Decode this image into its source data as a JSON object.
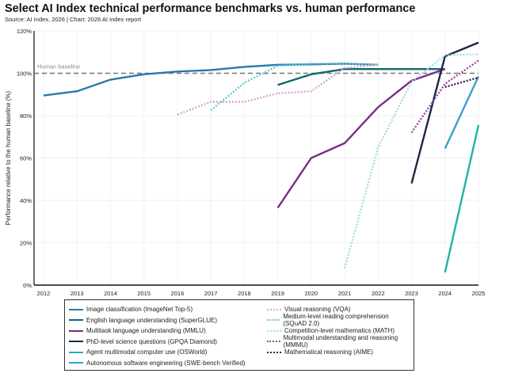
{
  "chart_data": {
    "type": "line",
    "title": "Select AI Index technical performance benchmarks vs. human performance",
    "subtitle": "Source: AI Index, 2026 | Chart: 2026 AI Index report",
    "xlabel": "",
    "ylabel": "Performance relative to the human baseline (%)",
    "xlim": [
      2012,
      2025
    ],
    "ylim": [
      0,
      120
    ],
    "x_ticks": [
      "2012",
      "2013",
      "2014",
      "2015",
      "2016",
      "2017",
      "2018",
      "2019",
      "2020",
      "2021",
      "2022",
      "2023",
      "2024",
      "2025"
    ],
    "y_ticks": [
      "0%",
      "20%",
      "40%",
      "60%",
      "80%",
      "100%",
      "120%"
    ],
    "baseline": {
      "label": "Human baseline",
      "value": 100
    },
    "legend_position": "bottom",
    "series": [
      {
        "name": "Image classification (ImageNet Top-5)",
        "color": "#2a78ad",
        "style": "solid",
        "x": [
          2012,
          2013,
          2014,
          2015,
          2016,
          2017,
          2018,
          2019,
          2020,
          2021,
          2022
        ],
        "y": [
          89.5,
          91.5,
          97,
          99.5,
          100.8,
          101.5,
          103,
          104,
          104.2,
          104.5,
          104
        ]
      },
      {
        "name": "English language understanding (SuperGLUE)",
        "color": "#10686a",
        "style": "solid",
        "x": [
          2019,
          2020,
          2021,
          2022,
          2023,
          2024
        ],
        "y": [
          94.5,
          99.5,
          102,
          102,
          102,
          102
        ]
      },
      {
        "name": "Multitask language understanding (MMLU)",
        "color": "#7a2d82",
        "style": "solid",
        "x": [
          2019,
          2020,
          2021,
          2022,
          2023,
          2024
        ],
        "y": [
          36.5,
          60,
          67,
          84,
          96.5,
          102
        ]
      },
      {
        "name": "PhD-level science questions (GPQA Diamond)",
        "color": "#1b2648",
        "style": "solid",
        "x": [
          2023,
          2024,
          2025
        ],
        "y": [
          48,
          108,
          114.5
        ]
      },
      {
        "name": "Agent multimodal computer use (OSWorld)",
        "color": "#1fb3a2",
        "style": "solid",
        "x": [
          2024,
          2025
        ],
        "y": [
          6,
          75.5
        ]
      },
      {
        "name": "Autonomous software engineering (SWE-bench Verified)",
        "color": "#3b9fcc",
        "style": "solid",
        "x": [
          2024,
          2025
        ],
        "y": [
          64.5,
          98.5
        ]
      },
      {
        "name": "Visual reasoning (VQA)",
        "color": "#d8a4cf",
        "style": "dotted",
        "x": [
          2016,
          2017,
          2018,
          2019,
          2020,
          2021,
          2022
        ],
        "y": [
          80.5,
          86.5,
          86.5,
          90.5,
          91.5,
          102.5,
          104
        ]
      },
      {
        "name": "Medium-level reading comprehension (SQuAD 2.0)",
        "color": "#66c9d3",
        "style": "dotted",
        "x": [
          2017,
          2018,
          2019,
          2020,
          2021,
          2022
        ],
        "y": [
          82.5,
          95.5,
          103.5,
          104.5,
          104.5,
          104
        ]
      },
      {
        "name": "Competition-level mathematics (MATH)",
        "color": "#a3dbe0",
        "style": "dotted",
        "x": [
          2021,
          2022,
          2023,
          2024,
          2025
        ],
        "y": [
          8,
          65,
          96,
          108.5,
          109
        ]
      },
      {
        "name": "Multimodal understanding and reasoning (MMMU)",
        "color": "#9a4897",
        "style": "dotted",
        "x": [
          2023,
          2024,
          2025
        ],
        "y": [
          72,
          95,
          106
        ]
      },
      {
        "name": "Mathematical reasoning (AIME)",
        "color": "#3a1a42",
        "style": "dotted",
        "x": [
          2024,
          2025
        ],
        "y": [
          93.5,
          98
        ]
      }
    ]
  }
}
